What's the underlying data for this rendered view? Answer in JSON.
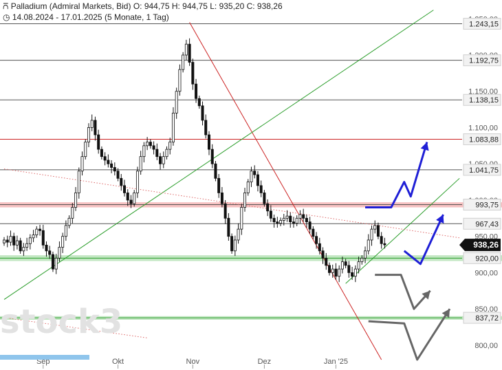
{
  "header": {
    "instrument": "Palladium (Admiral Markets, Bid)",
    "ohlc": "O: 944,75  H: 944,75  L: 935,20  C: 938,26",
    "range": "14.08.2024 - 17.01.2025  (5 Monate, 1 Tag)"
  },
  "watermark": "stock3",
  "chart_data": {
    "type": "candlestick",
    "ylim": [
      780,
      1255
    ],
    "y_ticks": [
      {
        "value": 1250,
        "label": "1.250,00"
      },
      {
        "value": 1200,
        "label": "1.200,00"
      },
      {
        "value": 1150,
        "label": "1.150,00"
      },
      {
        "value": 1100,
        "label": "1.100,00"
      },
      {
        "value": 1050,
        "label": "1.050,00"
      },
      {
        "value": 1000,
        "label": "1.000,00"
      },
      {
        "value": 950,
        "label": "950,00"
      },
      {
        "value": 900,
        "label": "900,00"
      },
      {
        "value": 850,
        "label": "850,00"
      },
      {
        "value": 800,
        "label": "800,00"
      }
    ],
    "x_labels": [
      {
        "label": "Sep",
        "index": 12
      },
      {
        "label": "Okt",
        "index": 35
      },
      {
        "label": "Nov",
        "index": 58
      },
      {
        "label": "Dez",
        "index": 80
      },
      {
        "label": "Jan '25",
        "index": 102
      }
    ],
    "levels": [
      {
        "value": 1243.15,
        "label": "1.243,15",
        "color": "#555555"
      },
      {
        "value": 1192.75,
        "label": "1.192,75",
        "color": "#555555"
      },
      {
        "value": 1138.15,
        "label": "1.138,15",
        "color": "#555555"
      },
      {
        "value": 1083.88,
        "label": "1.083,88",
        "color": "#cc2222"
      },
      {
        "value": 1041.75,
        "label": "1.041,75",
        "color": "#555555"
      },
      {
        "value": 993.75,
        "label": "993,75",
        "color": "#555555"
      },
      {
        "value": 967.43,
        "label": "967,43",
        "color": "#555555"
      },
      {
        "value": 920.0,
        "label": "920,00",
        "color": "#2a9d2a"
      },
      {
        "value": 837.72,
        "label": "837,72",
        "color": "#2a9d2a"
      }
    ],
    "last_price": {
      "value": 938.26,
      "label": "938,26"
    },
    "close": [
      945,
      942,
      950,
      938,
      944,
      930,
      935,
      940,
      948,
      952,
      960,
      958,
      938,
      930,
      925,
      905,
      920,
      935,
      950,
      965,
      975,
      990,
      1010,
      1040,
      1060,
      1080,
      1100,
      1110,
      1090,
      1070,
      1060,
      1055,
      1050,
      1045,
      1040,
      1030,
      1020,
      1010,
      1000,
      995,
      1010,
      1040,
      1060,
      1075,
      1080,
      1075,
      1070,
      1060,
      1050,
      1060,
      1070,
      1080,
      1120,
      1150,
      1180,
      1200,
      1215,
      1190,
      1160,
      1140,
      1130,
      1110,
      1090,
      1070,
      1050,
      1030,
      1010,
      995,
      975,
      950,
      930,
      945,
      960,
      990,
      1010,
      1025,
      1040,
      1035,
      1020,
      1010,
      995,
      985,
      975,
      970,
      968,
      972,
      975,
      978,
      970,
      968,
      975,
      980,
      975,
      970,
      960,
      950,
      940,
      930,
      920,
      910,
      900,
      905,
      895,
      905,
      915,
      910,
      900,
      895,
      905,
      915,
      920,
      930,
      945,
      960,
      965,
      950,
      940,
      938.26
    ],
    "trendlines": [
      {
        "name": "",
        "color": "#cc2222",
        "from": {
          "index": 57,
          "value": 1245
        },
        "to": {
          "index": 116,
          "value": 780
        }
      },
      {
        "name": "",
        "color": "#2a9d2a",
        "from": {
          "index": 0,
          "value": 863
        },
        "to": {
          "index": 132,
          "value": 1262
        }
      },
      {
        "name": "",
        "color": "#2a9d2a",
        "from": {
          "index": 105,
          "value": 885
        },
        "to": {
          "index": 140,
          "value": 1030
        }
      },
      {
        "name": "",
        "color": "#dd6666",
        "dotted": true,
        "from": {
          "index": 0,
          "value": 1043
        },
        "to": {
          "index": 140,
          "value": 948
        }
      },
      {
        "name": "",
        "color": "#dd6666",
        "dotted": true,
        "from": {
          "index": 0,
          "value": 838
        },
        "to": {
          "index": 44,
          "value": 810
        }
      }
    ],
    "bands": [
      {
        "low": 990,
        "high": 997,
        "color": "#f4b6b6"
      },
      {
        "low": 916,
        "high": 924,
        "color": "#b8e3b8"
      },
      {
        "low": 835,
        "high": 840,
        "color": "#b8e3b8"
      }
    ],
    "scenario_paths": [
      {
        "color": "#1f1fd6",
        "width": 3,
        "points": [
          {
            "index": 111,
            "value": 990
          },
          {
            "index": 119,
            "value": 990
          },
          {
            "index": 123,
            "value": 1025
          },
          {
            "index": 125,
            "value": 1005
          },
          {
            "index": 130,
            "value": 1080
          }
        ]
      },
      {
        "color": "#1f1fd6",
        "width": 3,
        "points": [
          {
            "index": 123,
            "value": 930
          },
          {
            "index": 128,
            "value": 912
          },
          {
            "index": 135,
            "value": 980
          }
        ]
      },
      {
        "color": "#666666",
        "width": 3,
        "points": [
          {
            "index": 114,
            "value": 897
          },
          {
            "index": 122,
            "value": 897
          },
          {
            "index": 126,
            "value": 850
          },
          {
            "index": 131,
            "value": 875
          }
        ]
      },
      {
        "color": "#666666",
        "width": 3,
        "points": [
          {
            "index": 112,
            "value": 833
          },
          {
            "index": 123,
            "value": 830
          },
          {
            "index": 127,
            "value": 780
          },
          {
            "index": 137,
            "value": 850
          }
        ]
      }
    ]
  }
}
